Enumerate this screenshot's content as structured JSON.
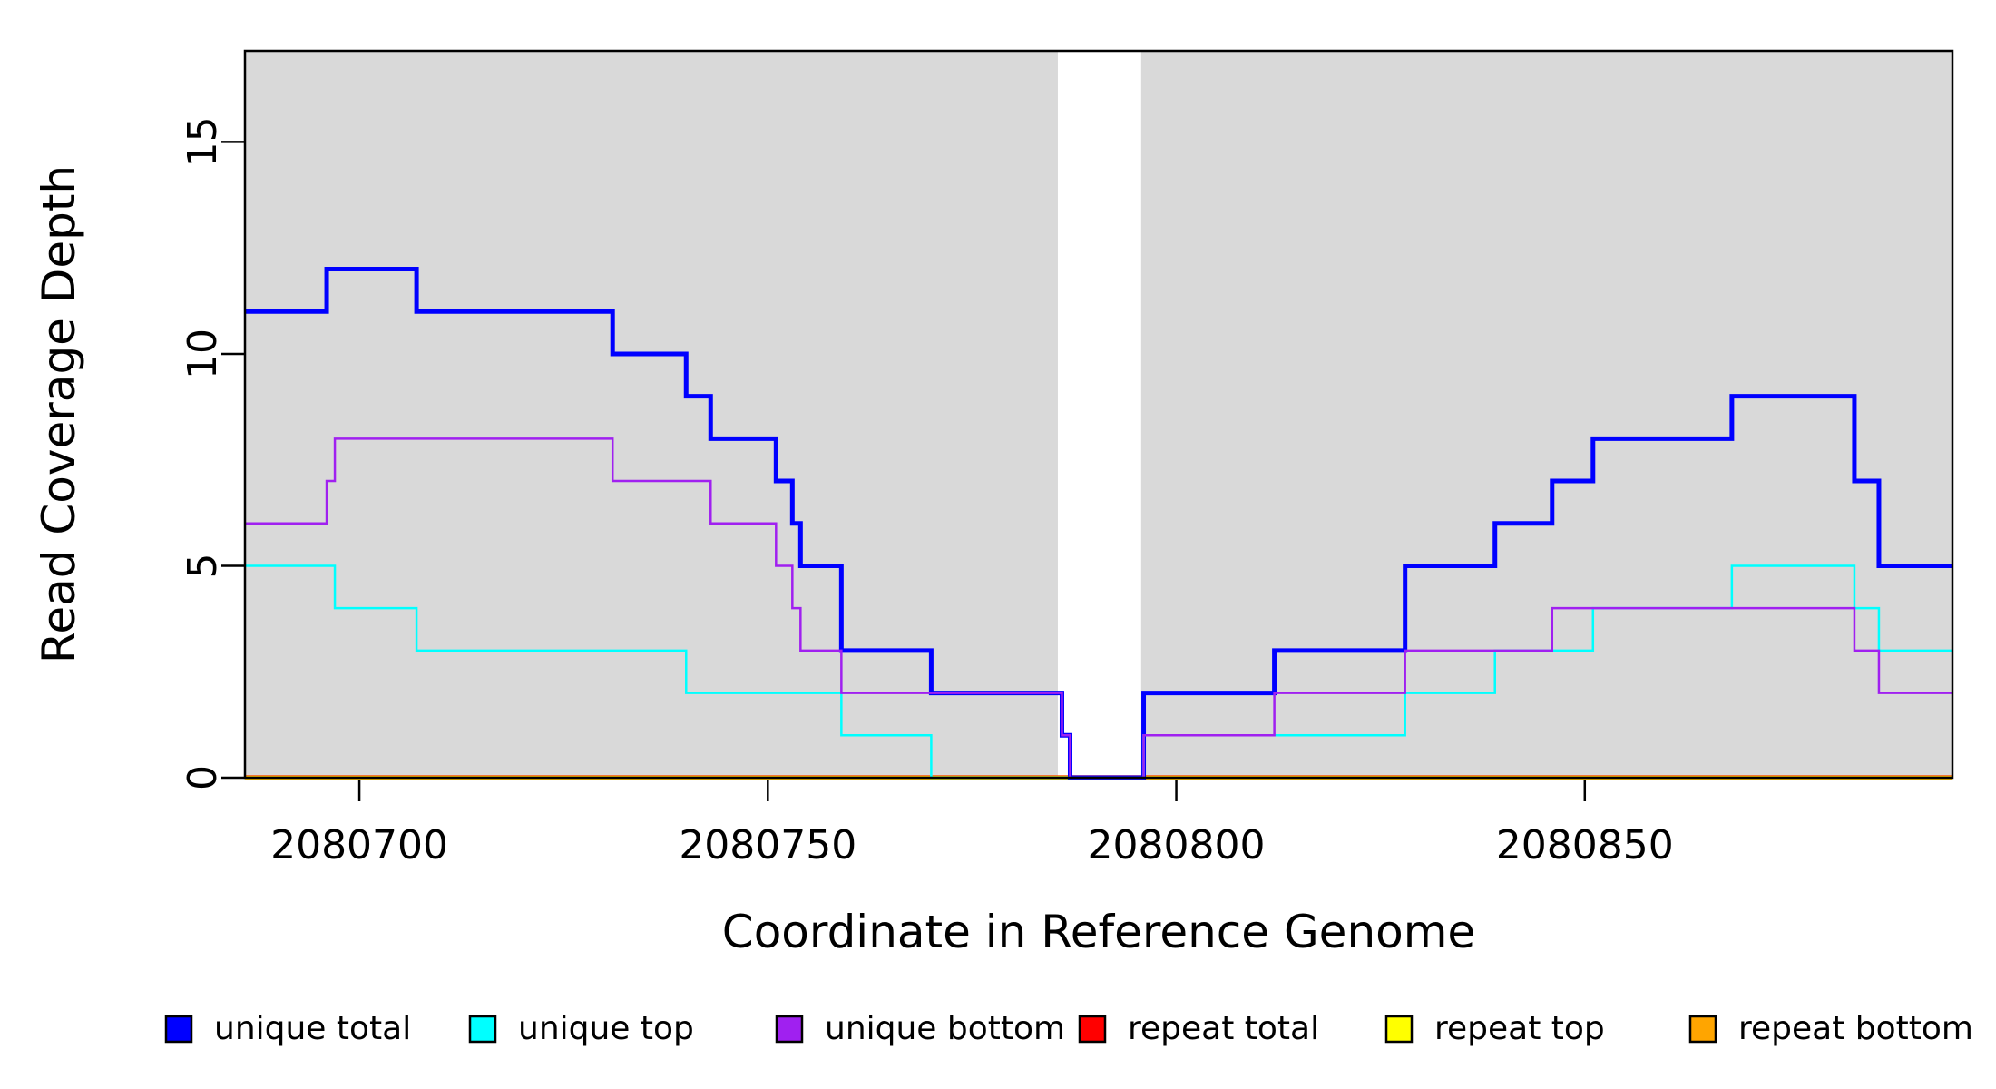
{
  "chart_data": {
    "type": "line",
    "subtype": "step-coverage-plot",
    "title": "",
    "xlabel": "Coordinate in Reference Genome",
    "ylabel": "Read Coverage Depth",
    "xlim": [
      2080686,
      2080895
    ],
    "ylim": [
      0,
      17.15
    ],
    "xticks": [
      2080700,
      2080750,
      2080800,
      2080850
    ],
    "xtick_labels": [
      "2080700",
      "2080750",
      "2080800",
      "2080850"
    ],
    "yticks": [
      0,
      5,
      10,
      15
    ],
    "ytick_labels": [
      "0",
      "5",
      "10",
      "15"
    ],
    "grid": false,
    "plot_background": "#FFFFFF",
    "shaded_band_color": "#D9D9D9",
    "shaded_regions": [
      {
        "name": "shaded-region-left",
        "x0": 2080686,
        "x1": 2080785.5
      },
      {
        "name": "shaded-region-right",
        "x0": 2080795.7,
        "x1": 2080895
      }
    ],
    "series_end_x": 2080895,
    "draw_order": [
      3,
      4,
      5,
      0,
      1,
      2
    ],
    "series": [
      {
        "name": "unique total",
        "color": "#0000FF",
        "line_width": 5,
        "steps": [
          [
            2080686,
            11
          ],
          [
            2080696,
            12
          ],
          [
            2080707,
            11
          ],
          [
            2080731,
            10
          ],
          [
            2080740,
            9
          ],
          [
            2080743,
            8
          ],
          [
            2080751,
            7
          ],
          [
            2080753,
            6
          ],
          [
            2080754,
            5
          ],
          [
            2080759,
            3
          ],
          [
            2080770,
            2
          ],
          [
            2080786,
            1
          ],
          [
            2080787,
            0
          ],
          [
            2080796,
            2
          ],
          [
            2080812,
            3
          ],
          [
            2080828,
            5
          ],
          [
            2080839,
            6
          ],
          [
            2080846,
            7
          ],
          [
            2080851,
            8
          ],
          [
            2080868,
            9
          ],
          [
            2080883,
            7
          ],
          [
            2080886,
            5
          ]
        ]
      },
      {
        "name": "unique top",
        "color": "#00FFFF",
        "line_width": 2.5,
        "steps": [
          [
            2080686,
            5
          ],
          [
            2080697,
            4
          ],
          [
            2080707,
            3
          ],
          [
            2080740,
            2
          ],
          [
            2080759,
            1
          ],
          [
            2080770,
            0
          ],
          [
            2080796,
            1
          ],
          [
            2080828,
            2
          ],
          [
            2080839,
            3
          ],
          [
            2080851,
            4
          ],
          [
            2080868,
            5
          ],
          [
            2080883,
            4
          ],
          [
            2080886,
            3
          ]
        ]
      },
      {
        "name": "unique bottom",
        "color": "#A020F0",
        "line_width": 2.5,
        "steps": [
          [
            2080686,
            6
          ],
          [
            2080696,
            7
          ],
          [
            2080697,
            8
          ],
          [
            2080731,
            7
          ],
          [
            2080743,
            6
          ],
          [
            2080751,
            5
          ],
          [
            2080753,
            4
          ],
          [
            2080754,
            3
          ],
          [
            2080759,
            2
          ],
          [
            2080786,
            1
          ],
          [
            2080787,
            0
          ],
          [
            2080796,
            1
          ],
          [
            2080812,
            2
          ],
          [
            2080828,
            3
          ],
          [
            2080846,
            4
          ],
          [
            2080883,
            3
          ],
          [
            2080886,
            2
          ]
        ]
      },
      {
        "name": "repeat total",
        "color": "#FF0000",
        "line_width": 5.5,
        "steps": [
          [
            2080686,
            0
          ]
        ]
      },
      {
        "name": "repeat top",
        "color": "#FFFF00",
        "line_width": 4.5,
        "steps": [
          [
            2080686,
            0
          ]
        ]
      },
      {
        "name": "repeat bottom",
        "color": "#FFA500",
        "line_width": 3.5,
        "steps": [
          [
            2080686,
            0
          ]
        ]
      }
    ],
    "legend": {
      "position": "bottom",
      "items": [
        {
          "label": "unique total",
          "color": "#0000FF"
        },
        {
          "label": "unique top",
          "color": "#00FFFF"
        },
        {
          "label": "unique bottom",
          "color": "#A020F0"
        },
        {
          "label": "repeat total",
          "color": "#FF0000"
        },
        {
          "label": "repeat top",
          "color": "#FFFF00"
        },
        {
          "label": "repeat bottom",
          "color": "#FFA500"
        }
      ]
    }
  }
}
